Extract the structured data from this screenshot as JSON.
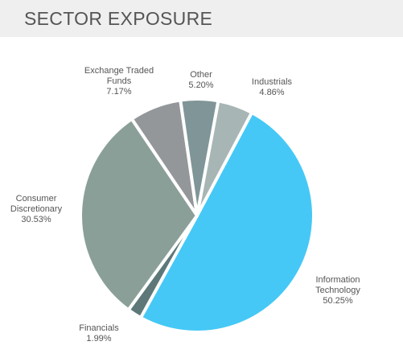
{
  "chart_data": {
    "type": "pie",
    "title": "SECTOR EXPOSURE",
    "categories": [
      "Information Technology",
      "Financials",
      "Consumer Discretionary",
      "Exchange Traded Funds",
      "Other",
      "Industrials"
    ],
    "values": [
      50.25,
      1.99,
      30.53,
      7.17,
      5.2,
      4.86
    ],
    "value_labels": [
      "50.25%",
      "1.99%",
      "30.53%",
      "7.17%",
      "5.20%",
      "4.86%"
    ],
    "colors": [
      "#45c8f6",
      "#5e7879",
      "#8b9f99",
      "#94979a",
      "#809597",
      "#a7b5b4"
    ]
  }
}
